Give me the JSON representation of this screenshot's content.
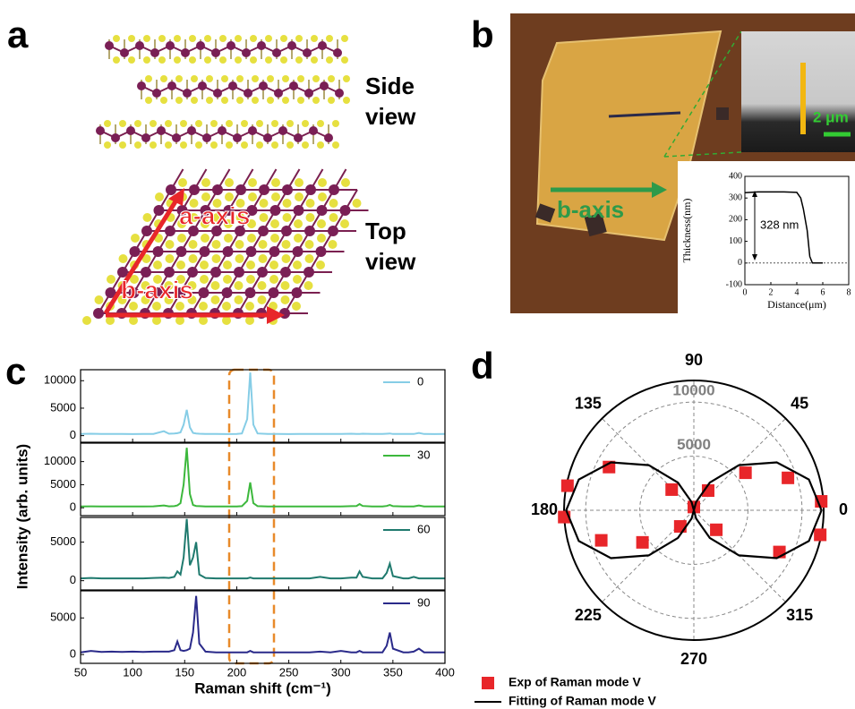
{
  "figure": {
    "panel_labels": [
      "a",
      "b",
      "c",
      "d"
    ],
    "panel_a": {
      "side_view": [
        "Side",
        "view"
      ],
      "top_view": [
        "Top",
        "view"
      ],
      "a_axis": "a-axis",
      "b_axis": "b-axis"
    },
    "panel_b": {
      "axis_label": "b-axis",
      "scale_bar": "2 μm"
    }
  },
  "chart_data": [
    {
      "type": "line",
      "xlabel": "Distance(μm)",
      "ylabel": "Thickness(nm)",
      "annotation": "328 nm",
      "x": [
        0,
        1,
        2,
        3,
        4,
        4.3,
        4.5,
        4.8,
        5.0,
        5.2,
        6
      ],
      "values": [
        325,
        328,
        328,
        328,
        326,
        300,
        250,
        150,
        30,
        0,
        0
      ],
      "color": "#000000",
      "xlim": [
        0,
        8
      ],
      "xticks": [
        0,
        2,
        4,
        6,
        8
      ],
      "ylim": [
        -100,
        400
      ],
      "yticks": [
        -100,
        0,
        100,
        200,
        300,
        400
      ]
    },
    {
      "type": "stacked-lines",
      "xlabel": "Raman shift (cm⁻¹)",
      "ylabel": "Intensity (arb. units)",
      "x": [
        50,
        60,
        70,
        80,
        90,
        100,
        110,
        120,
        130,
        135,
        140,
        143,
        146,
        149,
        152,
        155,
        158,
        161,
        164,
        170,
        180,
        190,
        200,
        205,
        210,
        213,
        216,
        220,
        230,
        240,
        250,
        260,
        270,
        280,
        290,
        300,
        310,
        315,
        318,
        321,
        330,
        340,
        344,
        347,
        350,
        360,
        365,
        370,
        375,
        380,
        390,
        400
      ],
      "xlim": [
        50,
        400
      ],
      "xticks": [
        50,
        100,
        150,
        200,
        250,
        300,
        350,
        400
      ],
      "subplots": [
        {
          "ylim": [
            -1200,
            12000
          ],
          "yticks": [
            0,
            5000,
            10000
          ],
          "series": [
            {
              "name": "0",
              "color": "#86cde6",
              "values": [
                300,
                350,
                300,
                320,
                300,
                280,
                300,
                320,
                800,
                350,
                400,
                450,
                600,
                2000,
                4700,
                1500,
                500,
                400,
                350,
                300,
                300,
                280,
                300,
                400,
                3000,
                11500,
                2000,
                400,
                300,
                300,
                280,
                300,
                300,
                300,
                300,
                300,
                350,
                300,
                320,
                350,
                300,
                300,
                350,
                400,
                300,
                300,
                300,
                300,
                500,
                300,
                280,
                300
              ]
            }
          ]
        },
        {
          "ylim": [
            -1700,
            14000
          ],
          "yticks": [
            0,
            5000,
            10000
          ],
          "series": [
            {
              "name": "30",
              "color": "#3cb83c",
              "values": [
                300,
                320,
                300,
                300,
                300,
                300,
                300,
                320,
                500,
                320,
                350,
                500,
                1000,
                5000,
                13000,
                3000,
                600,
                400,
                350,
                300,
                300,
                300,
                300,
                350,
                1500,
                5500,
                1000,
                350,
                300,
                300,
                300,
                300,
                300,
                300,
                300,
                300,
                350,
                400,
                800,
                400,
                300,
                300,
                400,
                600,
                350,
                300,
                300,
                300,
                500,
                300,
                300,
                300
              ]
            }
          ]
        },
        {
          "ylim": [
            -1200,
            8200
          ],
          "yticks": [
            0,
            5000
          ],
          "series": [
            {
              "name": "60",
              "color": "#1f7a6e",
              "values": [
                300,
                350,
                300,
                300,
                300,
                300,
                300,
                350,
                400,
                350,
                500,
                1200,
                800,
                3000,
                8000,
                2000,
                3000,
                5000,
                800,
                350,
                300,
                300,
                300,
                300,
                300,
                400,
                300,
                300,
                300,
                300,
                300,
                300,
                300,
                500,
                300,
                300,
                400,
                400,
                1200,
                500,
                300,
                300,
                1000,
                2200,
                600,
                300,
                300,
                500,
                300,
                300,
                300,
                300
              ]
            }
          ]
        },
        {
          "ylim": [
            -1200,
            8700
          ],
          "yticks": [
            0,
            5000
          ],
          "series": [
            {
              "name": "90",
              "color": "#2a2a8a",
              "values": [
                300,
                500,
                350,
                400,
                350,
                400,
                350,
                400,
                400,
                400,
                600,
                1800,
                600,
                500,
                600,
                800,
                3000,
                8000,
                1500,
                400,
                300,
                300,
                300,
                300,
                300,
                500,
                300,
                300,
                300,
                300,
                300,
                300,
                300,
                400,
                300,
                500,
                300,
                300,
                500,
                300,
                300,
                300,
                1200,
                3000,
                800,
                300,
                300,
                400,
                800,
                300,
                300,
                300
              ]
            }
          ]
        }
      ]
    },
    {
      "type": "polar",
      "thetaticks": [
        0,
        45,
        90,
        135,
        180,
        225,
        270,
        315
      ],
      "rlim": [
        0,
        12000
      ],
      "rticks": [
        5000,
        10000
      ],
      "series": [
        {
          "name": "Exp of Raman mode V",
          "color": "#e8262a",
          "theta": [
            4,
            349,
            19,
            334,
            36,
            54,
            319,
            169,
            183,
            153,
            198,
            212,
            137,
            230,
            90
          ],
          "values": [
            11800,
            11900,
            9200,
            8800,
            5900,
            2250,
            2750,
            11900,
            12000,
            8800,
            9000,
            5600,
            2800,
            1950,
            300
          ]
        },
        {
          "name": "Fitting of Raman mode V",
          "color": "#000000",
          "theta": [
            0,
            15,
            30,
            45,
            60,
            75,
            90,
            105,
            120,
            135,
            150,
            165,
            180,
            195,
            210,
            225,
            240,
            255,
            270,
            285,
            300,
            315,
            330,
            345,
            360
          ],
          "values": [
            11800,
            11010,
            8850,
            5900,
            2950,
            790,
            0,
            790,
            2950,
            5900,
            8850,
            11010,
            11800,
            11010,
            8850,
            5900,
            2950,
            790,
            0,
            790,
            2950,
            5900,
            8850,
            11010,
            11800
          ]
        }
      ]
    }
  ]
}
